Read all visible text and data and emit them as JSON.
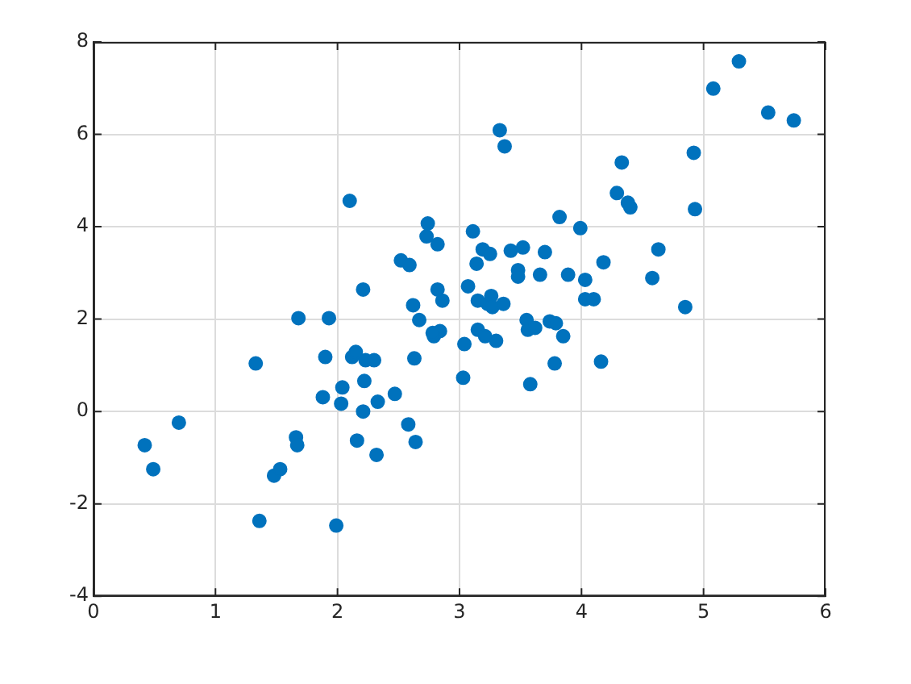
{
  "chart_data": {
    "type": "scatter",
    "xlim": [
      0,
      6
    ],
    "xticks": [
      0,
      1,
      2,
      3,
      4,
      5,
      6
    ],
    "ylim": [
      -4,
      8
    ],
    "yticks": [
      -4,
      -2,
      0,
      2,
      4,
      6,
      8
    ],
    "grid": true,
    "marker": "circle",
    "legend": false,
    "series": [
      {
        "color": "#0072bd",
        "x": [
          0.42,
          0.49,
          0.7,
          1.33,
          1.36,
          1.48,
          1.53,
          1.66,
          1.67,
          1.68,
          1.88,
          1.9,
          1.93,
          1.99,
          2.03,
          2.04,
          2.1,
          2.12,
          2.15,
          2.16,
          2.21,
          2.21,
          2.22,
          2.23,
          2.3,
          2.33,
          2.32,
          2.47,
          2.52,
          2.59,
          2.58,
          2.62,
          2.63,
          2.64,
          2.67,
          2.73,
          2.74,
          2.79,
          2.82,
          2.82,
          2.86,
          2.84,
          2.78,
          3.03,
          3.04,
          3.07,
          3.11,
          3.14,
          3.15,
          3.15,
          3.21,
          3.19,
          3.23,
          3.25,
          3.26,
          3.27,
          3.3,
          3.33,
          3.37,
          3.36,
          3.42,
          3.48,
          3.52,
          3.48,
          3.55,
          3.56,
          3.58,
          3.62,
          3.66,
          3.7,
          3.74,
          3.78,
          3.79,
          3.82,
          3.85,
          3.89,
          3.99,
          4.03,
          4.03,
          4.1,
          4.18,
          4.16,
          4.29,
          4.33,
          4.38,
          4.4,
          4.58,
          4.63,
          4.85,
          4.92,
          4.93,
          5.08,
          5.29,
          5.53,
          5.74
        ],
        "values": [
          -0.73,
          -1.25,
          -0.24,
          1.04,
          -2.37,
          -1.39,
          -1.25,
          -0.56,
          -0.73,
          2.02,
          0.31,
          1.18,
          2.02,
          -2.47,
          0.17,
          0.52,
          4.56,
          1.18,
          1.29,
          -0.63,
          0.0,
          2.64,
          0.66,
          1.11,
          1.11,
          0.21,
          -0.94,
          0.38,
          3.27,
          3.17,
          -0.28,
          2.3,
          1.15,
          -0.66,
          1.98,
          3.79,
          4.07,
          1.63,
          2.64,
          3.62,
          2.4,
          1.74,
          1.7,
          0.73,
          1.46,
          2.71,
          3.9,
          3.2,
          2.4,
          1.77,
          1.63,
          3.51,
          2.33,
          3.41,
          2.5,
          2.26,
          1.53,
          6.09,
          5.74,
          2.33,
          3.48,
          3.06,
          3.55,
          2.92,
          1.98,
          1.77,
          0.59,
          1.81,
          2.96,
          3.45,
          1.95,
          1.04,
          1.91,
          4.21,
          1.63,
          2.96,
          3.97,
          2.85,
          2.43,
          2.43,
          3.23,
          1.08,
          4.73,
          5.39,
          4.52,
          4.42,
          2.89,
          3.51,
          2.26,
          5.6,
          4.38,
          6.99,
          7.58,
          6.47,
          6.3
        ]
      }
    ]
  }
}
